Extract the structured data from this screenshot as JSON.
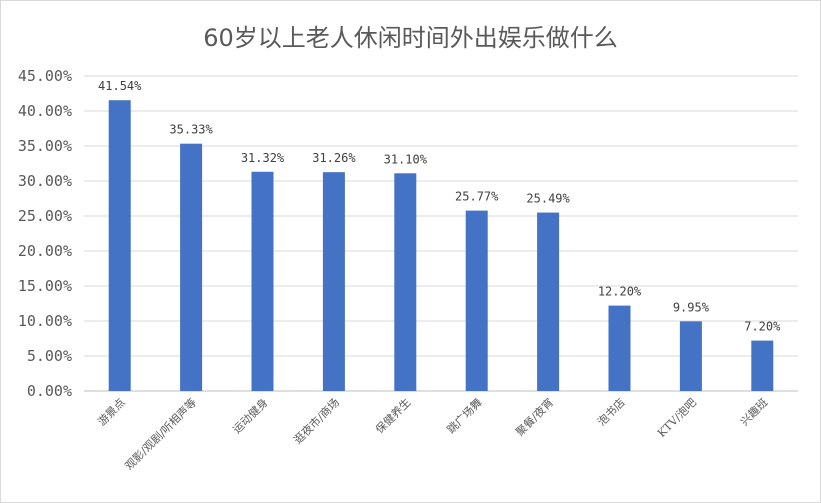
{
  "chart_data": {
    "type": "bar",
    "title": "60岁以上老人休闲时间外出娱乐做什么",
    "xlabel": "",
    "ylabel": "",
    "ylim": [
      0,
      45
    ],
    "yticks": [
      "0.00%",
      "5.00%",
      "10.00%",
      "15.00%",
      "20.00%",
      "25.00%",
      "30.00%",
      "35.00%",
      "40.00%",
      "45.00%"
    ],
    "categories": [
      "游景点",
      "观影/观剧/听相声等",
      "运动健身",
      "逛夜市/商场",
      "保健养生",
      "跳广场舞",
      "聚餐/夜宵",
      "泡书店",
      "KTV/泡吧",
      "兴趣班"
    ],
    "values": [
      41.54,
      35.33,
      31.32,
      31.26,
      31.1,
      25.77,
      25.49,
      12.2,
      9.95,
      7.2
    ],
    "data_labels": [
      "41.54%",
      "35.33%",
      "31.32%",
      "31.26%",
      "31.10%",
      "25.77%",
      "25.49%",
      "12.20%",
      "9.95%",
      "7.20%"
    ],
    "grid": true,
    "legend": "none",
    "bar_color": "#4472c4"
  }
}
